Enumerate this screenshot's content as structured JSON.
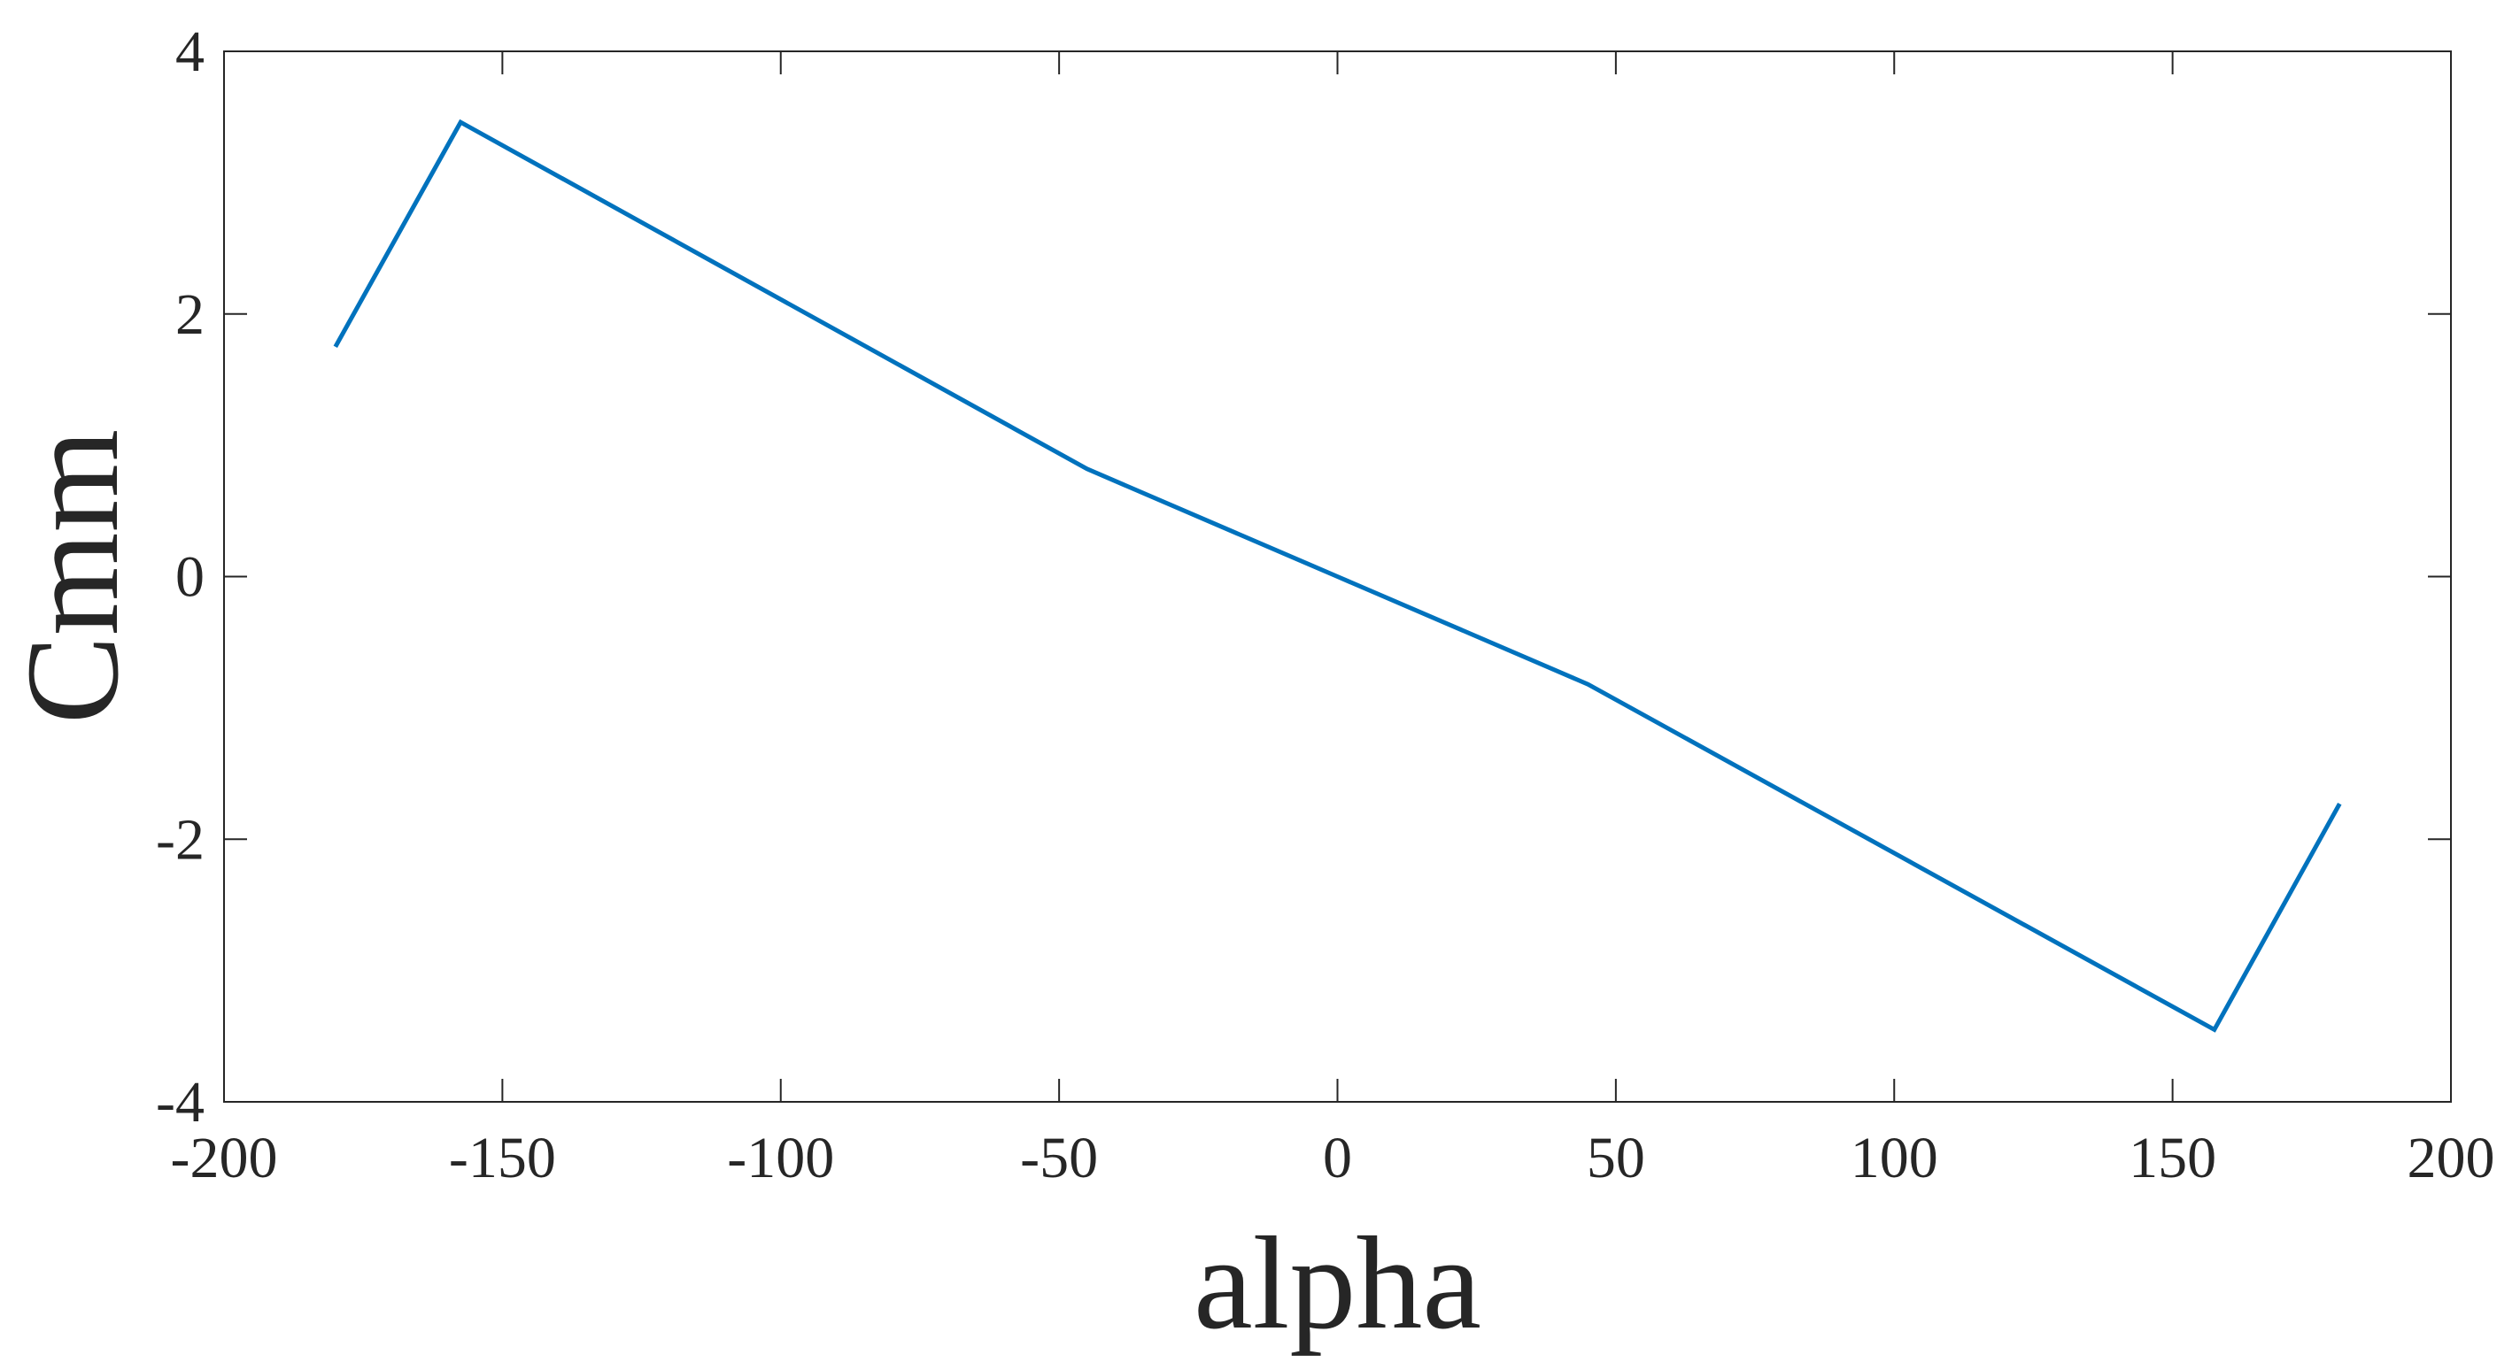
{
  "chart_data": {
    "type": "line",
    "title": "",
    "xlabel": "alpha",
    "ylabel": "Cmm",
    "xlim": [
      -200,
      200
    ],
    "ylim": [
      -4,
      4
    ],
    "xticks": [
      -200,
      -150,
      -100,
      -50,
      0,
      50,
      100,
      150,
      200
    ],
    "yticks": [
      -4,
      -2,
      0,
      2,
      4
    ],
    "xtick_labels": [
      "-200",
      "-150",
      "-100",
      "-50",
      "0",
      "50",
      "100",
      "150",
      "200"
    ],
    "ytick_labels": [
      "-4",
      "-2",
      "0",
      "2",
      "4"
    ],
    "grid": false,
    "box": true,
    "line_color": "#0072BD",
    "series": [
      {
        "x": [
          -180,
          -157.5,
          -45,
          0,
          45,
          157.5,
          180
        ],
        "y": [
          1.75,
          3.46,
          0.82,
          0,
          -0.82,
          -3.45,
          -1.73
        ]
      }
    ]
  }
}
